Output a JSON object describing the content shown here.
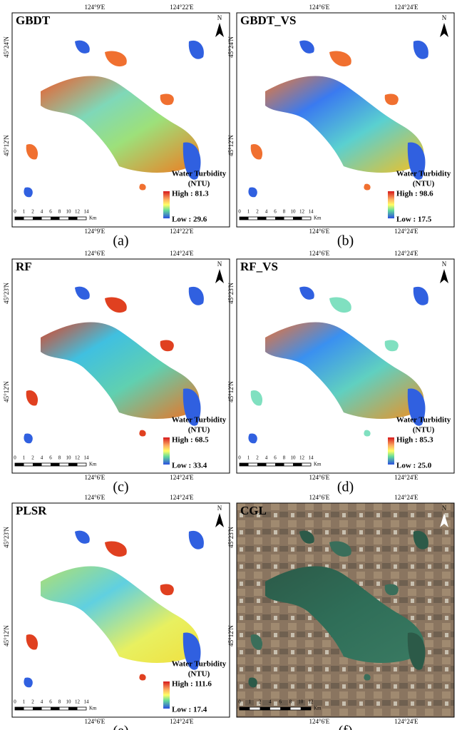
{
  "panels": [
    {
      "title": "GBDT",
      "caption": "(a)",
      "top_labels": [
        "124°9'E",
        "124°22'E"
      ],
      "bottom_labels": [
        "124°9'E",
        "124°22'E"
      ],
      "left_labels": [
        "45°24'N",
        "45°12'N"
      ],
      "north": "N",
      "scale_labels": [
        "0",
        "1",
        "2",
        "4",
        "6",
        "8",
        "10",
        "12",
        "14"
      ],
      "scale_unit": "Km",
      "legend": {
        "title": "Water Turbidity",
        "unit": "(NTU)",
        "high": "High : 81.3",
        "low": "Low : 29.6"
      }
    },
    {
      "title": "GBDT_VS",
      "caption": "(b)",
      "top_labels": [
        "124°6'E",
        "124°24'E"
      ],
      "bottom_labels": [
        "124°6'E",
        "124°24'E"
      ],
      "left_labels": [
        "45°24'N",
        "45°12'N"
      ],
      "north": "N",
      "scale_labels": [
        "0",
        "1",
        "2",
        "4",
        "6",
        "8",
        "10",
        "12",
        "14"
      ],
      "scale_unit": "Km",
      "legend": {
        "title": "Water Turbidity",
        "unit": "(NTU)",
        "high": "High : 98.6",
        "low": "Low : 17.5"
      }
    },
    {
      "title": "RF",
      "caption": "(c)",
      "top_labels": [
        "124°6'E",
        "124°24'E"
      ],
      "bottom_labels": [
        "124°6'E",
        "124°24'E"
      ],
      "left_labels": [
        "45°23'N",
        "45°12'N"
      ],
      "north": "N",
      "scale_labels": [
        "0",
        "1",
        "2",
        "4",
        "6",
        "8",
        "10",
        "12",
        "14"
      ],
      "scale_unit": "Km",
      "legend": {
        "title": "Water Turbidity",
        "unit": "(NTU)",
        "high": "High : 68.5",
        "low": "Low : 33.4"
      }
    },
    {
      "title": "RF_VS",
      "caption": "(d)",
      "top_labels": [
        "124°6'E",
        "124°24'E"
      ],
      "bottom_labels": [
        "124°6'E",
        "124°24'E"
      ],
      "left_labels": [
        "45°23'N",
        "45°12'N"
      ],
      "north": "N",
      "scale_labels": [
        "0",
        "1",
        "2",
        "4",
        "6",
        "8",
        "10",
        "12",
        "14"
      ],
      "scale_unit": "Km",
      "legend": {
        "title": "Water Turbidity",
        "unit": "(NTU)",
        "high": "High : 85.3",
        "low": "Low : 25.0"
      }
    },
    {
      "title": "PLSR",
      "caption": "(e)",
      "top_labels": [
        "124°6'E",
        "124°24'E"
      ],
      "bottom_labels": [
        "124°6'E",
        "124°24'E"
      ],
      "left_labels": [
        "45°23'N",
        "45°12'N"
      ],
      "north": "N",
      "scale_labels": [
        "0",
        "1",
        "2",
        "4",
        "6",
        "8",
        "10",
        "12",
        "14"
      ],
      "scale_unit": "Km",
      "legend": {
        "title": "Water Turbidity",
        "unit": "(NTU)",
        "high": "High : 111.6",
        "low": "Low : 17.4"
      }
    },
    {
      "title": "CGL",
      "caption": "(f)",
      "top_labels": [
        "124°6'E",
        "124°24'E"
      ],
      "bottom_labels": [
        "124°6'E",
        "124°24'E"
      ],
      "left_labels": [
        "45°23'N",
        "45°12'N"
      ],
      "north": "N",
      "scale_labels": [
        "0",
        "1",
        "2",
        "4",
        "6",
        "8",
        "10",
        "12"
      ],
      "scale_unit": "Km"
    }
  ]
}
